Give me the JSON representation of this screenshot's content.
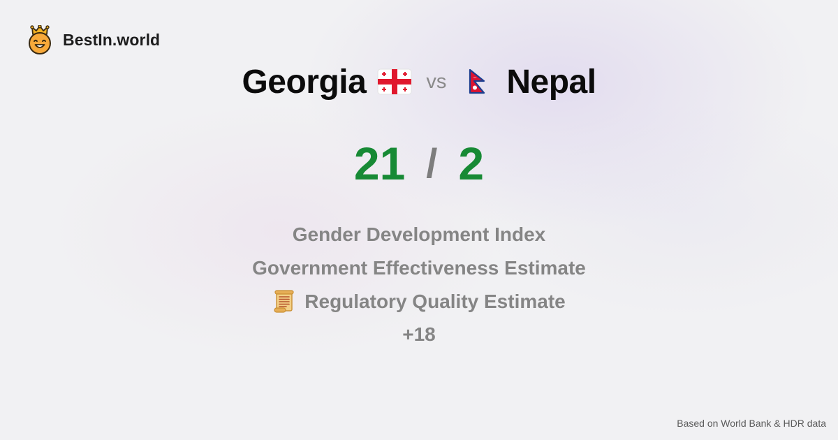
{
  "brand": {
    "name": "BestIn.world",
    "icon": "crowned-smiley-icon"
  },
  "comparison": {
    "left_country": "Georgia",
    "left_flag": "georgia-flag-icon",
    "vs_label": "vs",
    "right_country": "Nepal",
    "right_flag": "nepal-flag-icon"
  },
  "score": {
    "left": "21",
    "separator": "/",
    "right": "2",
    "color": "#178a35"
  },
  "metrics": [
    {
      "label": "Gender Development Index",
      "icon": ""
    },
    {
      "label": "Government Effectiveness Estimate",
      "icon": ""
    },
    {
      "label": "Regulatory Quality Estimate",
      "icon": "scroll-icon"
    }
  ],
  "more_label": "+18",
  "footer": {
    "source": "Based on World Bank & HDR data"
  }
}
